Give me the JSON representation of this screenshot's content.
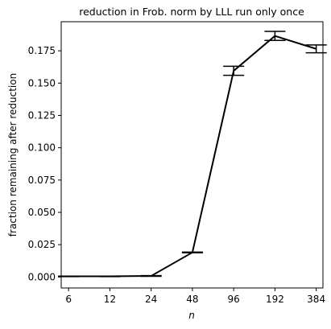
{
  "chart_data": {
    "type": "line",
    "title": "reduction in Frob. norm by LLL run only once",
    "xlabel": "n",
    "ylabel": "fraction remaining after reduction",
    "x_scale": "log2",
    "xlim": [
      5.3,
      430
    ],
    "ylim": [
      -0.0085,
      0.1975
    ],
    "x_ticks": [
      6,
      12,
      24,
      48,
      96,
      192,
      384
    ],
    "x_tick_labels": [
      "6",
      "12",
      "24",
      "48",
      "96",
      "192",
      "384"
    ],
    "y_ticks": [
      0.0,
      0.025,
      0.05,
      0.075,
      0.1,
      0.125,
      0.15,
      0.175
    ],
    "y_tick_labels": [
      "0.000",
      "0.025",
      "0.050",
      "0.075",
      "0.100",
      "0.125",
      "0.150",
      "0.175"
    ],
    "grid": false,
    "series": [
      {
        "x": [
          6,
          12,
          24,
          48,
          96,
          192,
          384
        ],
        "y": [
          0.0005,
          0.0005,
          0.0008,
          0.019,
          0.1595,
          0.1865,
          0.1765
        ],
        "err": [
          0.0002,
          0.0002,
          0.0003,
          0.0003,
          0.0035,
          0.0035,
          0.003
        ],
        "color": "#000000"
      }
    ]
  }
}
